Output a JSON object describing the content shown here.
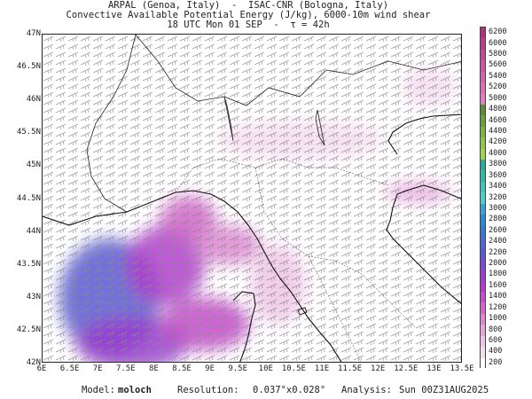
{
  "header": {
    "line1": "ARPAL (Genoa, Italy)  -  ISAC-CNR (Bologna, Italy)",
    "line2": "Convective Available Potential Energy (J/kg), 6000-10m wind shear",
    "line3": "18 UTC Mon 01 SEP  -  τ = 42h"
  },
  "map": {
    "lon_ticks": [
      "6E",
      "6.5E",
      "7E",
      "7.5E",
      "8E",
      "8.5E",
      "9E",
      "9.5E",
      "10E",
      "10.5E",
      "11E",
      "11.5E",
      "12E",
      "12.5E",
      "13E",
      "13.5E"
    ],
    "lat_ticks": [
      "47N",
      "46.5N",
      "46N",
      "45.5N",
      "45N",
      "44.5N",
      "44N",
      "43.5N",
      "43N",
      "42.5N",
      "42N"
    ],
    "lon_range": [
      6,
      13.5
    ],
    "lat_range": [
      42,
      47
    ],
    "cape_fields": [
      {
        "lon": 7.2,
        "lat": 43.0,
        "rx": 0.9,
        "ry": 0.9,
        "level": 2200
      },
      {
        "lon": 7.6,
        "lat": 42.3,
        "rx": 1.0,
        "ry": 0.4,
        "level": 1800
      },
      {
        "lon": 8.2,
        "lat": 43.5,
        "rx": 0.7,
        "ry": 0.6,
        "level": 1600
      },
      {
        "lon": 8.6,
        "lat": 44.2,
        "rx": 0.5,
        "ry": 0.35,
        "level": 1200
      },
      {
        "lon": 9.3,
        "lat": 43.8,
        "rx": 0.6,
        "ry": 0.3,
        "level": 1000
      },
      {
        "lon": 8.9,
        "lat": 42.6,
        "rx": 0.8,
        "ry": 0.4,
        "level": 1400
      },
      {
        "lon": 10.6,
        "lat": 45.4,
        "rx": 1.5,
        "ry": 0.3,
        "level": 400
      },
      {
        "lon": 12.7,
        "lat": 44.6,
        "rx": 0.6,
        "ry": 0.15,
        "level": 800
      },
      {
        "lon": 12.9,
        "lat": 46.2,
        "rx": 0.5,
        "ry": 0.3,
        "level": 400
      },
      {
        "lon": 10.2,
        "lat": 43.2,
        "rx": 0.5,
        "ry": 0.6,
        "level": 600
      }
    ]
  },
  "colorbar": {
    "levels": [
      "6200",
      "6000",
      "5800",
      "5600",
      "5400",
      "5200",
      "5000",
      "4800",
      "4600",
      "4400",
      "4200",
      "4000",
      "3800",
      "3600",
      "3400",
      "3200",
      "3000",
      "2800",
      "2600",
      "2400",
      "2200",
      "2000",
      "1800",
      "1600",
      "1400",
      "1200",
      "1000",
      "800",
      "600",
      "400",
      "200"
    ],
    "colors": [
      "#b0307f",
      "#b83e8a",
      "#c04a95",
      "#c858a0",
      "#d066ab",
      "#d874b6",
      "#e080c0",
      "#5c8a3a",
      "#6aa040",
      "#7bb445",
      "#8cc64a",
      "#a0d44e",
      "#30a898",
      "#30b8a8",
      "#40c4b8",
      "#50ccc8",
      "#3aa0d8",
      "#2c8ad0",
      "#3878d0",
      "#4a6ad0",
      "#5a5ad0",
      "#7a4ad0",
      "#9a3ed0",
      "#b03ecc",
      "#c24ec8",
      "#d066c8",
      "#dc88d0",
      "#e6a6dc",
      "#eec4e6",
      "#f4dcef",
      "#ffffff"
    ]
  },
  "footer": {
    "model_label": "Model:",
    "model_value": "moloch",
    "resolution_label": "Resolution:",
    "resolution_value": "0.037°x0.028°",
    "analysis_label": "Analysis:",
    "analysis_value": "Sun 00Z31AUG2025"
  }
}
